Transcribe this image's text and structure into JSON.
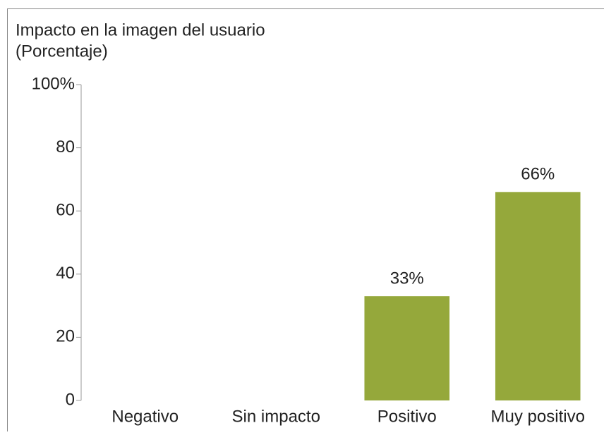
{
  "chart_data": {
    "type": "bar",
    "title": [
      "Impacto en la imagen del usuario",
      "(Porcentaje)"
    ],
    "categories": [
      "Negativo",
      "Sin impacto",
      "Positivo",
      "Muy positivo"
    ],
    "values": [
      0,
      0,
      33,
      66
    ],
    "value_labels": [
      null,
      null,
      "33%",
      "66%"
    ],
    "color": "#95a83b",
    "ylim": [
      0,
      100
    ],
    "yticks": [
      0,
      20,
      40,
      60,
      80,
      {
        "value": 100,
        "label": "100%"
      }
    ],
    "grid": false
  }
}
